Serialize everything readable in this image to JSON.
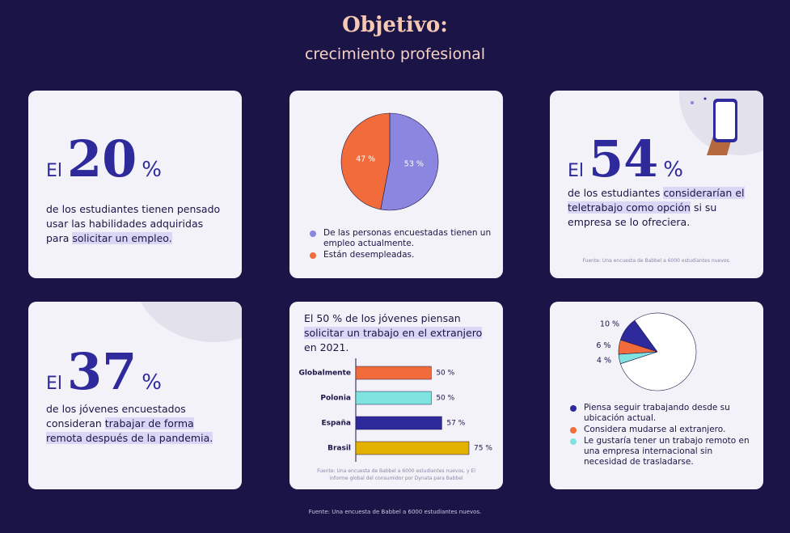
{
  "header": {
    "title": "Objetivo:",
    "subtitle": "crecimiento profesional"
  },
  "cards": [
    {
      "prefix": "El",
      "number": 20,
      "unit": "%",
      "before": "de los estudiantes tienen pensado usar las habilidades adquiridas para",
      "highlight": "solicitar un empleo.",
      "after": null
    },
    {
      "prefix": "El",
      "number": 54,
      "unit": "%",
      "before": "de los estudiantes",
      "highlight": "considerarían el teletrabajo como opción",
      "after": "si su empresa se lo ofreciera.",
      "source": "Fuente: Una encuesta de Babbel a 6000 estudiantes nuevos."
    },
    {
      "prefix": "El",
      "number": 37,
      "unit": "%",
      "before": "de los jóvenes encuestados consideran",
      "highlight": "trabajar de forma remota después de la pandemia.",
      "after": null
    }
  ],
  "chart_data": [
    {
      "type": "pie",
      "categories": [
        "De las personas encuestadas tienen un empleo actualmente.",
        "Están desempleadas."
      ],
      "values": [
        53,
        47
      ],
      "value_labels": [
        "53 %",
        "47 %"
      ],
      "colors": [
        "#8b86df",
        "#f26b3a"
      ]
    },
    {
      "type": "bar",
      "title": {
        "before": "El 50 % de los jóvenes piensan",
        "highlight": "solicitar un trabajo en el extranjero",
        "after": "en 2021."
      },
      "categories": [
        "Globalmente",
        "Polonia",
        "España",
        "Brasil"
      ],
      "values": [
        50,
        50,
        57,
        75
      ],
      "value_labels": [
        "50 %",
        "50 %",
        "57 %",
        "75 %"
      ],
      "colors": [
        "#f26b3a",
        "#7fe3e0",
        "#2f2a9c",
        "#e3b100"
      ],
      "source": "Fuente: Una encuesta de Babbel a 6000 estudiantes nuevos, y El informe global del consumidor por Dynata para Babbel"
    },
    {
      "type": "pie",
      "categories": [
        "Piensa seguir trabajando desde su ubicación actual.",
        "Considera mudarse al extranjero.",
        "Le gustaría tener un trabajo remoto en una empresa internacional sin necesidad de trasladarse.",
        null
      ],
      "values": [
        10,
        6,
        4,
        80
      ],
      "value_labels": [
        "10 %",
        "6 %",
        "4 %",
        null
      ],
      "colors": [
        "#2f2a9c",
        "#f26b3a",
        "#7fe3e0",
        "#ffffff"
      ]
    }
  ],
  "footer": "Fuente: Una encuesta de Babbel a 6000 estudiantes nuevos."
}
